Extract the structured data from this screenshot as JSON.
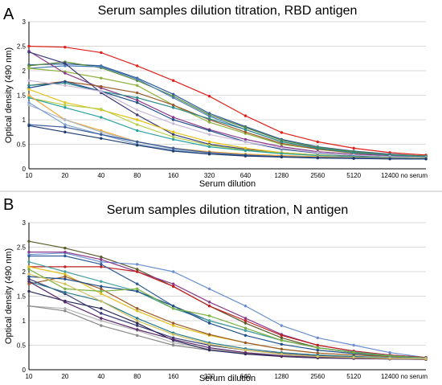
{
  "chart_data": [
    {
      "type": "line",
      "panel": "A",
      "title": "Serum samples dilution titration, RBD antigen",
      "xlabel": "Serum dilution",
      "ylabel": "Optical density (490 nm)",
      "categories": [
        "10",
        "20",
        "40",
        "80",
        "160",
        "320",
        "640",
        "1280",
        "2560",
        "5120",
        "12400",
        "no serum"
      ],
      "ylim": [
        0,
        3
      ],
      "yticks": [
        "0",
        "0.5",
        "1",
        "1.5",
        "2",
        "2.5",
        "3"
      ],
      "grid": true,
      "legend": "none",
      "series": [
        {
          "color": "#e0201b",
          "values": [
            2.5,
            2.48,
            2.37,
            2.1,
            1.8,
            1.48,
            1.08,
            0.74,
            0.55,
            0.42,
            0.33,
            0.28
          ]
        },
        {
          "color": "#2e5c9a",
          "values": [
            2.12,
            2.14,
            2.1,
            1.85,
            1.52,
            1.13,
            0.86,
            0.6,
            0.45,
            0.36,
            0.3,
            0.26
          ]
        },
        {
          "color": "#5b8a3c",
          "values": [
            2.1,
            2.18,
            2.06,
            1.8,
            1.48,
            1.1,
            0.84,
            0.58,
            0.44,
            0.35,
            0.29,
            0.26
          ]
        },
        {
          "color": "#4a7fb5",
          "values": [
            2.05,
            2.1,
            2.08,
            1.83,
            1.45,
            1.07,
            0.8,
            0.55,
            0.42,
            0.33,
            0.28,
            0.25
          ]
        },
        {
          "color": "#8fb03a",
          "values": [
            2.05,
            1.98,
            1.85,
            1.7,
            1.3,
            0.95,
            0.72,
            0.5,
            0.4,
            0.32,
            0.27,
            0.25
          ]
        },
        {
          "color": "#8b3a8b",
          "values": [
            2.4,
            1.95,
            1.65,
            1.4,
            1.05,
            0.8,
            0.6,
            0.45,
            0.35,
            0.3,
            0.27,
            0.24
          ]
        },
        {
          "color": "#3a3a7a",
          "values": [
            2.38,
            2.15,
            1.55,
            1.1,
            0.7,
            0.5,
            0.4,
            0.33,
            0.28,
            0.26,
            0.24,
            0.23
          ]
        },
        {
          "color": "#9b5a2a",
          "values": [
            1.7,
            1.78,
            1.68,
            1.55,
            1.3,
            1.0,
            0.75,
            0.52,
            0.4,
            0.33,
            0.28,
            0.25
          ]
        },
        {
          "color": "#2a8a8a",
          "values": [
            1.7,
            1.75,
            1.58,
            1.45,
            1.25,
            1.02,
            0.8,
            0.55,
            0.42,
            0.33,
            0.28,
            0.25
          ]
        },
        {
          "color": "#1f4e8a",
          "values": [
            1.65,
            1.78,
            1.58,
            1.35,
            1.0,
            0.78,
            0.55,
            0.4,
            0.32,
            0.28,
            0.25,
            0.23
          ]
        },
        {
          "color": "#e6c21a",
          "values": [
            1.62,
            1.35,
            1.2,
            1.0,
            0.75,
            0.55,
            0.42,
            0.33,
            0.28,
            0.25,
            0.23,
            0.22
          ]
        },
        {
          "color": "#b5d04a",
          "values": [
            1.45,
            1.3,
            1.22,
            0.9,
            0.65,
            0.48,
            0.38,
            0.32,
            0.28,
            0.25,
            0.23,
            0.22
          ]
        },
        {
          "color": "#c8b8d8",
          "values": [
            1.8,
            1.7,
            1.58,
            1.2,
            0.92,
            0.7,
            0.55,
            0.42,
            0.33,
            0.28,
            0.25,
            0.23
          ]
        },
        {
          "color": "#2aa0a0",
          "values": [
            1.45,
            1.25,
            1.05,
            0.78,
            0.6,
            0.45,
            0.37,
            0.31,
            0.27,
            0.25,
            0.23,
            0.22
          ]
        },
        {
          "color": "#f0a830",
          "values": [
            1.5,
            1.0,
            0.78,
            0.55,
            0.42,
            0.35,
            0.3,
            0.27,
            0.25,
            0.23,
            0.22,
            0.21
          ]
        },
        {
          "color": "#a8b8c8",
          "values": [
            1.3,
            1.0,
            0.75,
            0.55,
            0.4,
            0.32,
            0.28,
            0.25,
            0.23,
            0.22,
            0.21,
            0.2
          ]
        },
        {
          "color": "#7a9fd0",
          "values": [
            1.35,
            0.9,
            0.7,
            0.5,
            0.38,
            0.3,
            0.27,
            0.25,
            0.23,
            0.22,
            0.21,
            0.2
          ]
        },
        {
          "color": "#3a5a9a",
          "values": [
            0.9,
            0.85,
            0.7,
            0.55,
            0.42,
            0.33,
            0.28,
            0.25,
            0.23,
            0.22,
            0.21,
            0.2
          ]
        },
        {
          "color": "#1e3a6e",
          "values": [
            0.88,
            0.75,
            0.62,
            0.48,
            0.36,
            0.3,
            0.26,
            0.24,
            0.22,
            0.21,
            0.2,
            0.2
          ]
        }
      ]
    },
    {
      "type": "line",
      "panel": "B",
      "title": "Serum samples dilution titration, N antigen",
      "xlabel": "Serum dilution",
      "ylabel": "Optical density (490 nm)",
      "categories": [
        "10",
        "20",
        "40",
        "80",
        "160",
        "320",
        "640",
        "1280",
        "2560",
        "5120",
        "12400",
        "no serum"
      ],
      "ylim": [
        0,
        3
      ],
      "yticks": [
        "0",
        "0.5",
        "1",
        "1.5",
        "2",
        "2.5",
        "3"
      ],
      "grid": true,
      "legend": "none",
      "series": [
        {
          "color": "#5a5a2a",
          "values": [
            2.62,
            2.48,
            2.3,
            2.05,
            1.7,
            1.3,
            0.95,
            0.65,
            0.45,
            0.35,
            0.28,
            0.25
          ]
        },
        {
          "color": "#6a8fd0",
          "values": [
            2.35,
            2.38,
            2.2,
            2.15,
            2.0,
            1.65,
            1.3,
            0.9,
            0.65,
            0.5,
            0.35,
            0.25
          ]
        },
        {
          "color": "#8b3a8b",
          "values": [
            2.4,
            2.4,
            2.25,
            2.0,
            1.75,
            1.38,
            1.05,
            0.72,
            0.5,
            0.38,
            0.3,
            0.25
          ]
        },
        {
          "color": "#c02020",
          "values": [
            2.1,
            2.1,
            2.1,
            2.0,
            1.7,
            1.3,
            1.0,
            0.7,
            0.5,
            0.38,
            0.3,
            0.25
          ]
        },
        {
          "color": "#2e5c9a",
          "values": [
            2.32,
            2.32,
            2.15,
            1.75,
            1.3,
            1.0,
            0.8,
            0.6,
            0.45,
            0.35,
            0.28,
            0.24
          ]
        },
        {
          "color": "#4aa0a0",
          "values": [
            2.2,
            2.0,
            1.8,
            1.6,
            1.25,
            1.0,
            0.8,
            0.6,
            0.45,
            0.36,
            0.29,
            0.24
          ]
        },
        {
          "color": "#e0c020",
          "values": [
            2.1,
            1.95,
            1.55,
            1.2,
            0.9,
            0.7,
            0.55,
            0.42,
            0.34,
            0.3,
            0.27,
            0.24
          ]
        },
        {
          "color": "#9b5a2a",
          "values": [
            1.75,
            1.9,
            1.65,
            1.25,
            0.95,
            0.72,
            0.55,
            0.42,
            0.34,
            0.3,
            0.27,
            0.24
          ]
        },
        {
          "color": "#1f4e8a",
          "values": [
            1.9,
            1.85,
            1.7,
            1.6,
            1.3,
            0.95,
            0.7,
            0.52,
            0.4,
            0.33,
            0.28,
            0.24
          ]
        },
        {
          "color": "#7ab040",
          "values": [
            2.05,
            1.65,
            1.6,
            1.65,
            1.25,
            1.1,
            0.85,
            0.6,
            0.45,
            0.35,
            0.28,
            0.24
          ]
        },
        {
          "color": "#3a3a7a",
          "values": [
            1.85,
            1.55,
            1.15,
            0.9,
            0.65,
            0.5,
            0.4,
            0.33,
            0.28,
            0.26,
            0.25,
            0.23
          ]
        },
        {
          "color": "#2a7a8a",
          "values": [
            1.8,
            1.58,
            1.4,
            1.05,
            0.75,
            0.55,
            0.43,
            0.35,
            0.3,
            0.27,
            0.25,
            0.23
          ]
        },
        {
          "color": "#b5b5b5",
          "values": [
            1.3,
            1.25,
            1.0,
            0.8,
            0.55,
            0.42,
            0.35,
            0.3,
            0.27,
            0.25,
            0.24,
            0.23
          ]
        },
        {
          "color": "#888888",
          "values": [
            1.3,
            1.2,
            0.9,
            0.7,
            0.5,
            0.4,
            0.33,
            0.28,
            0.26,
            0.24,
            0.23,
            0.22
          ]
        },
        {
          "color": "#2a2a5a",
          "values": [
            1.6,
            1.4,
            1.25,
            0.95,
            0.6,
            0.4,
            0.32,
            0.27,
            0.24,
            0.23,
            0.22,
            0.21
          ]
        },
        {
          "color": "#5a2a6a",
          "values": [
            1.8,
            1.38,
            1.05,
            0.82,
            0.62,
            0.45,
            0.35,
            0.28,
            0.25,
            0.23,
            0.22,
            0.21
          ]
        },
        {
          "color": "#d0c060",
          "values": [
            1.95,
            1.75,
            1.4,
            1.0,
            0.72,
            0.52,
            0.4,
            0.32,
            0.27,
            0.25,
            0.23,
            0.22
          ]
        }
      ]
    }
  ]
}
